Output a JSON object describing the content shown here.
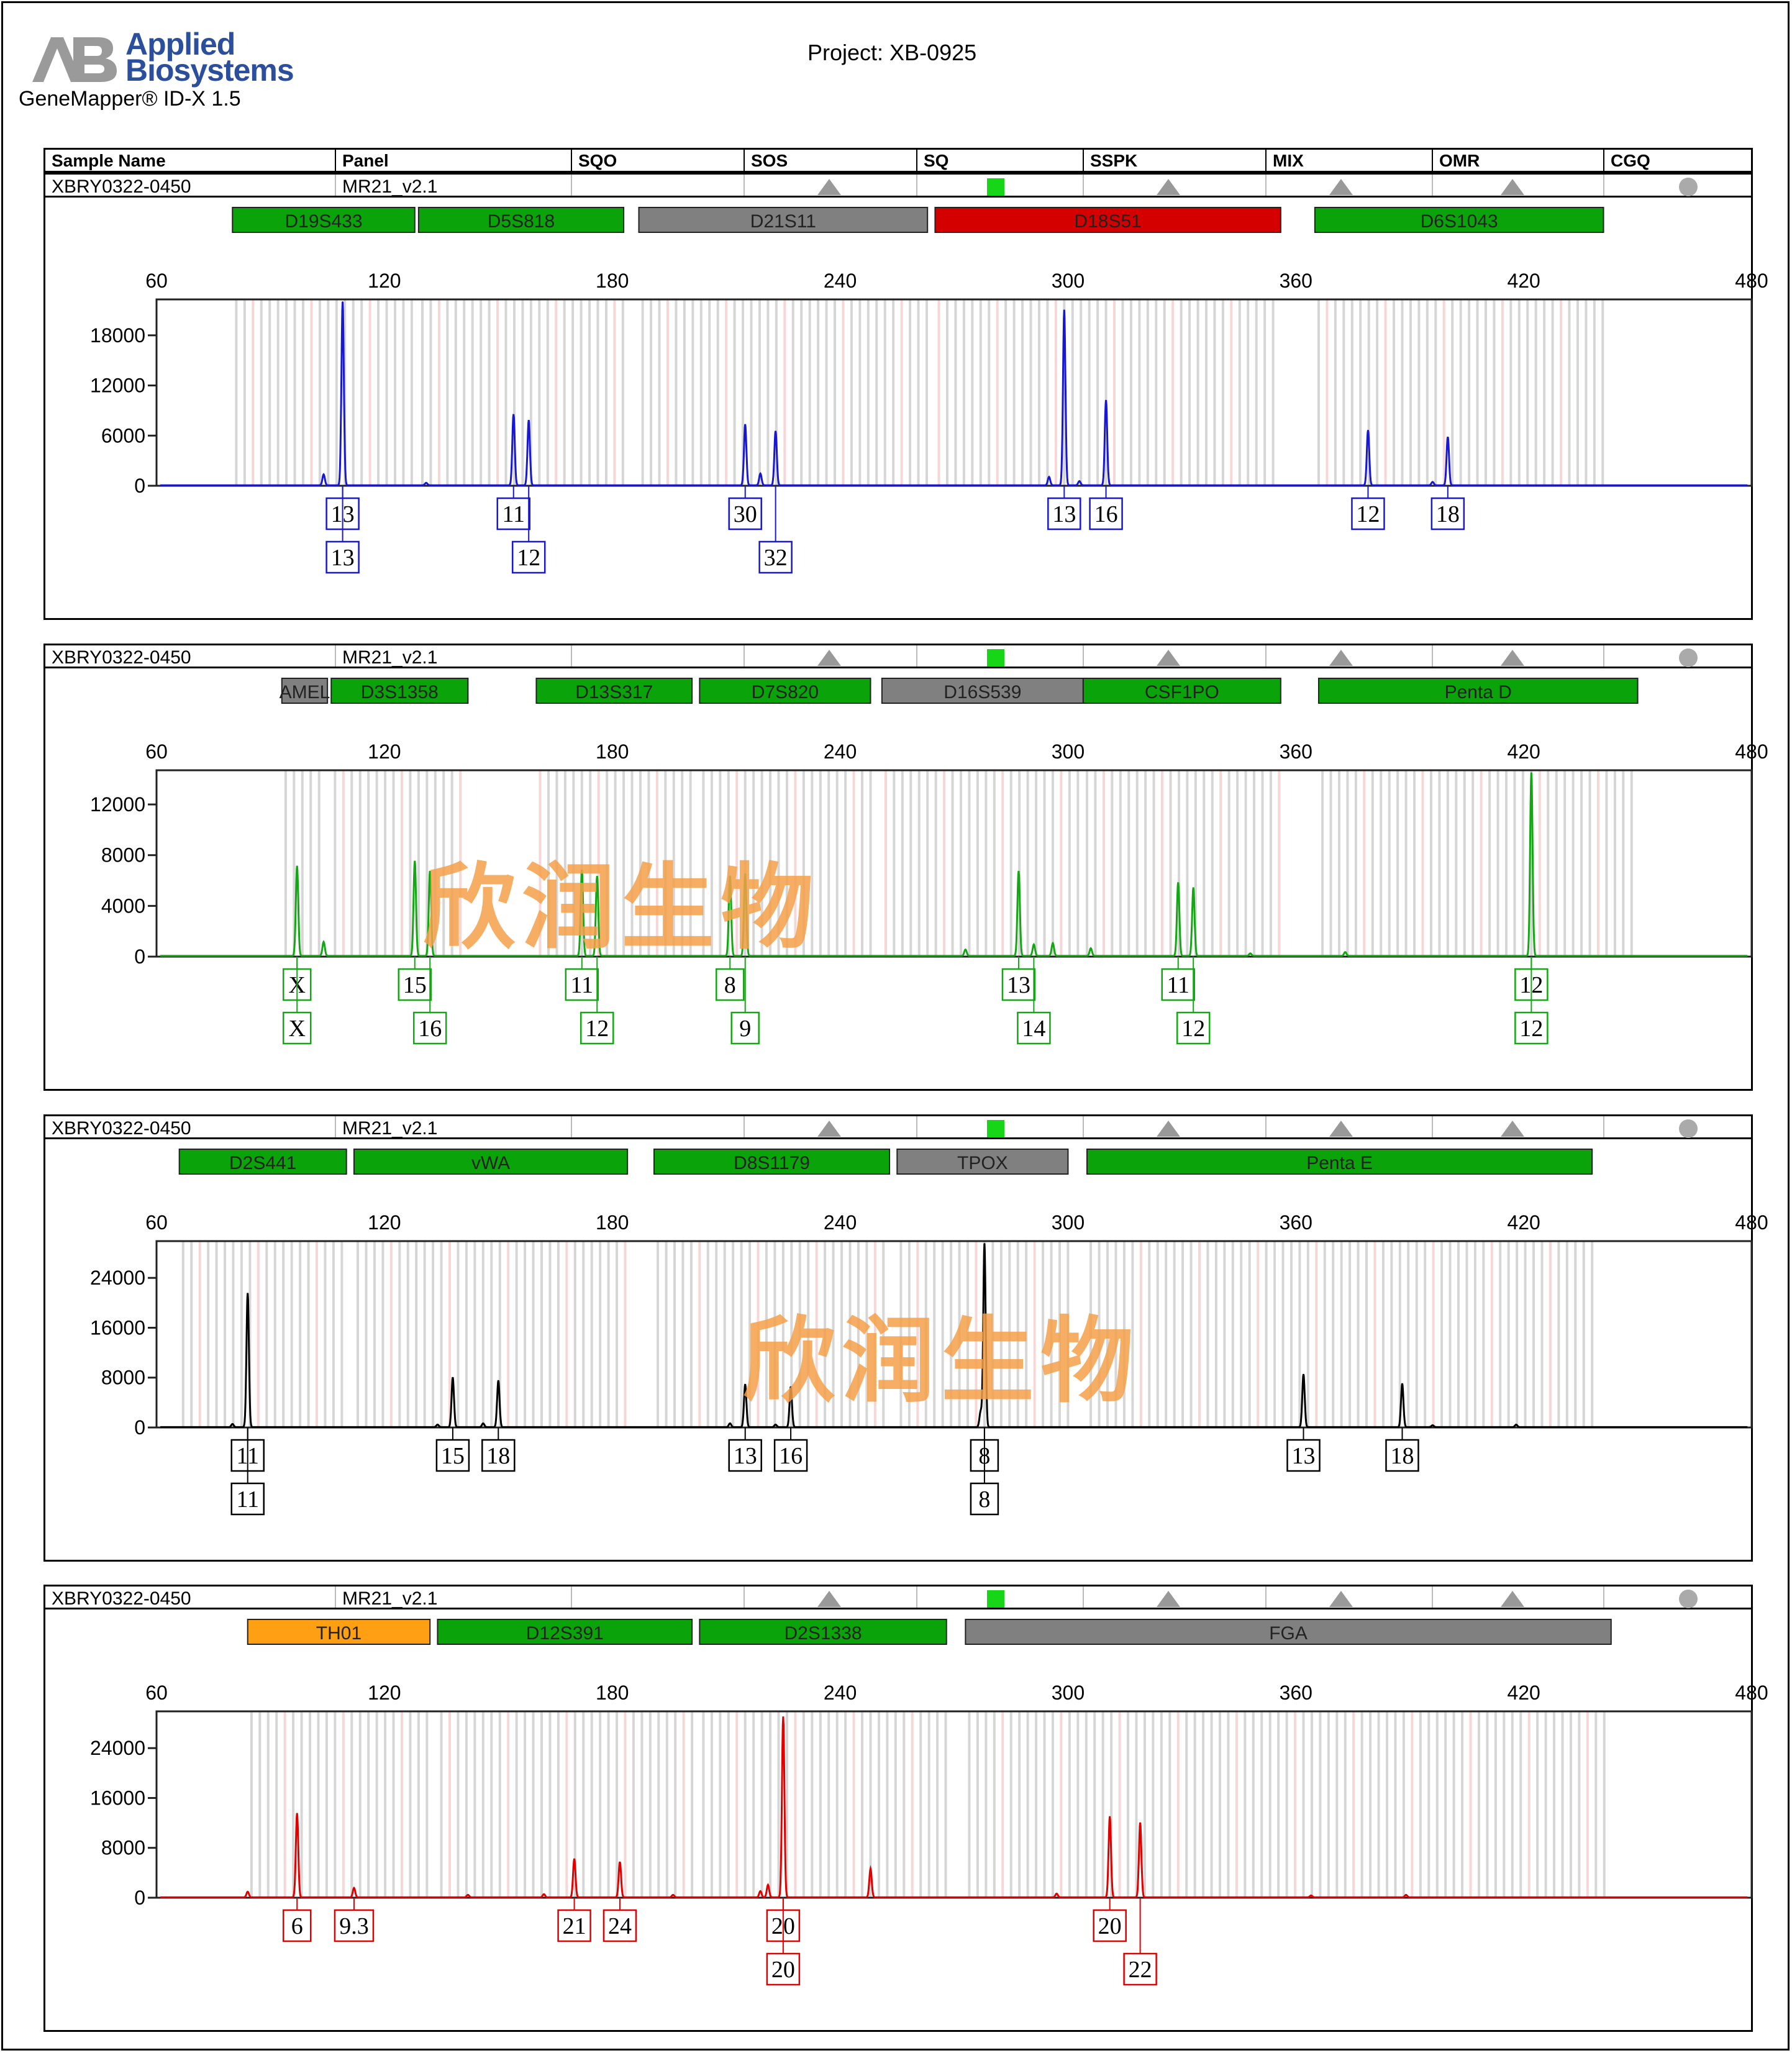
{
  "logo": {
    "line1": "Applied",
    "line2": "Biosystems"
  },
  "app_name": "GeneMapper® ID-X  1.5",
  "project": "Project: XB-0925",
  "watermark": "欣润生物",
  "header": {
    "columns": [
      "Sample Name",
      "Panel",
      "SQO",
      "SOS",
      "SQ",
      "SSPK",
      "MIX",
      "OMR",
      "CGQ"
    ]
  },
  "colors": {
    "green": "#0aa30a",
    "gray": "#808080",
    "red": "#d40000",
    "orange": "#ff9f14",
    "blue": "#1818d0",
    "green_trace": "#13a813",
    "black_trace": "#000000",
    "red_trace": "#e00000"
  },
  "chart_data": [
    {
      "type": "line",
      "sample_name": "XBRY0322-0450",
      "panel": "MR21_v2.1",
      "trace_color": "#1818d0",
      "xlim": [
        60,
        480
      ],
      "x_ticks": [
        60,
        120,
        180,
        240,
        300,
        360,
        420,
        480
      ],
      "ylim": [
        0,
        22000
      ],
      "y_ticks": [
        0,
        6000,
        12000,
        18000
      ],
      "markers": [
        {
          "name": "D19S433",
          "from": 80,
          "to": 128,
          "status": "green"
        },
        {
          "name": "D5S818",
          "from": 129,
          "to": 183,
          "status": "green"
        },
        {
          "name": "D21S11",
          "from": 187,
          "to": 263,
          "status": "gray"
        },
        {
          "name": "D18S51",
          "from": 265,
          "to": 356,
          "status": "red"
        },
        {
          "name": "D6S1043",
          "from": 365,
          "to": 441,
          "status": "green"
        }
      ],
      "peaks": [
        [
          104,
          1300
        ],
        [
          104.5,
          0
        ],
        [
          109,
          22000
        ],
        [
          154,
          8500
        ],
        [
          158,
          7800
        ],
        [
          131,
          300
        ],
        [
          215,
          7300
        ],
        [
          219,
          1400
        ],
        [
          223,
          6500
        ],
        [
          295,
          1000
        ],
        [
          299,
          21000
        ],
        [
          303,
          500
        ],
        [
          310,
          10200
        ],
        [
          379,
          6600
        ],
        [
          400,
          5800
        ],
        [
          396,
          400
        ]
      ],
      "labels": [
        {
          "x": 109,
          "text": "13",
          "row": 1
        },
        {
          "x": 109,
          "text": "13",
          "row": 2
        },
        {
          "x": 154,
          "text": "11",
          "row": 1
        },
        {
          "x": 158,
          "text": "12",
          "row": 2
        },
        {
          "x": 215,
          "text": "30",
          "row": 1
        },
        {
          "x": 223,
          "text": "32",
          "row": 2
        },
        {
          "x": 299,
          "text": "13",
          "row": 1
        },
        {
          "x": 310,
          "text": "16",
          "row": 1
        },
        {
          "x": 379,
          "text": "12",
          "row": 1
        },
        {
          "x": 400,
          "text": "18",
          "row": 1
        }
      ]
    },
    {
      "type": "line",
      "sample_name": "XBRY0322-0450",
      "panel": "MR21_v2.1",
      "trace_color": "#13a813",
      "xlim": [
        60,
        480
      ],
      "x_ticks": [
        60,
        120,
        180,
        240,
        300,
        360,
        420,
        480
      ],
      "ylim": [
        0,
        14500
      ],
      "y_ticks": [
        0,
        4000,
        8000,
        12000
      ],
      "markers": [
        {
          "name": "AMEL",
          "from": 93,
          "to": 105,
          "status": "gray"
        },
        {
          "name": "D3S1358",
          "from": 106,
          "to": 142,
          "status": "green"
        },
        {
          "name": "D13S317",
          "from": 160,
          "to": 201,
          "status": "green"
        },
        {
          "name": "D7S820",
          "from": 203,
          "to": 248,
          "status": "green"
        },
        {
          "name": "D16S539",
          "from": 251,
          "to": 304,
          "status": "gray"
        },
        {
          "name": "CSF1PO",
          "from": 304,
          "to": 356,
          "status": "green"
        },
        {
          "name": "Penta D",
          "from": 366,
          "to": 450,
          "status": "green"
        }
      ],
      "peaks": [
        [
          97,
          7100
        ],
        [
          104,
          1100
        ],
        [
          128,
          7500
        ],
        [
          132,
          6700
        ],
        [
          172,
          6800
        ],
        [
          176,
          6300
        ],
        [
          211,
          6300
        ],
        [
          215,
          6500
        ],
        [
          273,
          500
        ],
        [
          287,
          6700
        ],
        [
          291,
          900
        ],
        [
          296,
          1000
        ],
        [
          306,
          600
        ],
        [
          329,
          5800
        ],
        [
          333,
          5400
        ],
        [
          422,
          14500
        ],
        [
          373,
          300
        ],
        [
          348,
          200
        ]
      ],
      "labels": [
        {
          "x": 97,
          "text": "X",
          "row": 1
        },
        {
          "x": 97,
          "text": "X",
          "row": 2
        },
        {
          "x": 128,
          "text": "15",
          "row": 1
        },
        {
          "x": 132,
          "text": "16",
          "row": 2
        },
        {
          "x": 172,
          "text": "11",
          "row": 1
        },
        {
          "x": 176,
          "text": "12",
          "row": 2
        },
        {
          "x": 211,
          "text": "8",
          "row": 1
        },
        {
          "x": 215,
          "text": "9",
          "row": 2
        },
        {
          "x": 287,
          "text": "13",
          "row": 1
        },
        {
          "x": 291,
          "text": "14",
          "row": 2
        },
        {
          "x": 329,
          "text": "11",
          "row": 1
        },
        {
          "x": 333,
          "text": "12",
          "row": 2
        },
        {
          "x": 422,
          "text": "12",
          "row": 1
        },
        {
          "x": 422,
          "text": "12",
          "row": 2
        }
      ]
    },
    {
      "type": "line",
      "sample_name": "XBRY0322-0450",
      "panel": "MR21_v2.1",
      "trace_color": "#000000",
      "xlim": [
        60,
        480
      ],
      "x_ticks": [
        60,
        120,
        180,
        240,
        300,
        360,
        420,
        480
      ],
      "ylim": [
        0,
        29500
      ],
      "y_ticks": [
        0,
        8000,
        16000,
        24000
      ],
      "markers": [
        {
          "name": "D2S441",
          "from": 66,
          "to": 110,
          "status": "green"
        },
        {
          "name": "vWA",
          "from": 112,
          "to": 184,
          "status": "green"
        },
        {
          "name": "D8S1179",
          "from": 191,
          "to": 253,
          "status": "green"
        },
        {
          "name": "TPOX",
          "from": 255,
          "to": 300,
          "status": "gray"
        },
        {
          "name": "Penta E",
          "from": 305,
          "to": 438,
          "status": "green"
        }
      ],
      "peaks": [
        [
          84,
          21500
        ],
        [
          80,
          500
        ],
        [
          138,
          8000
        ],
        [
          150,
          7500
        ],
        [
          134,
          400
        ],
        [
          146,
          600
        ],
        [
          215,
          6900
        ],
        [
          227,
          6500
        ],
        [
          211,
          600
        ],
        [
          223,
          400
        ],
        [
          278,
          29500
        ],
        [
          277,
          2500
        ],
        [
          362,
          8500
        ],
        [
          388,
          7000
        ],
        [
          396,
          300
        ],
        [
          418,
          400
        ]
      ],
      "labels": [
        {
          "x": 84,
          "text": "11",
          "row": 1
        },
        {
          "x": 84,
          "text": "11",
          "row": 2
        },
        {
          "x": 138,
          "text": "15",
          "row": 1
        },
        {
          "x": 150,
          "text": "18",
          "row": 1
        },
        {
          "x": 215,
          "text": "13",
          "row": 1
        },
        {
          "x": 227,
          "text": "16",
          "row": 1
        },
        {
          "x": 278,
          "text": "8",
          "row": 1
        },
        {
          "x": 278,
          "text": "8",
          "row": 2
        },
        {
          "x": 362,
          "text": "13",
          "row": 1
        },
        {
          "x": 388,
          "text": "18",
          "row": 1
        }
      ]
    },
    {
      "type": "line",
      "sample_name": "XBRY0322-0450",
      "panel": "MR21_v2.1",
      "trace_color": "#e00000",
      "xlim": [
        60,
        480
      ],
      "x_ticks": [
        60,
        120,
        180,
        240,
        300,
        360,
        420,
        480
      ],
      "ylim": [
        0,
        29500
      ],
      "y_ticks": [
        0,
        8000,
        16000,
        24000
      ],
      "markers": [
        {
          "name": "TH01",
          "from": 84,
          "to": 132,
          "status": "orange"
        },
        {
          "name": "D12S391",
          "from": 134,
          "to": 201,
          "status": "green"
        },
        {
          "name": "D2S1338",
          "from": 203,
          "to": 268,
          "status": "green"
        },
        {
          "name": "FGA",
          "from": 273,
          "to": 443,
          "status": "gray"
        }
      ],
      "peaks": [
        [
          97,
          13500
        ],
        [
          84,
          900
        ],
        [
          112,
          1500
        ],
        [
          170,
          6200
        ],
        [
          182,
          5700
        ],
        [
          162,
          500
        ],
        [
          196,
          400
        ],
        [
          225,
          29000
        ],
        [
          221,
          2000
        ],
        [
          219,
          1000
        ],
        [
          248,
          4600
        ],
        [
          142,
          400
        ],
        [
          297,
          600
        ],
        [
          311,
          13000
        ],
        [
          319,
          12000
        ],
        [
          364,
          300
        ],
        [
          389,
          400
        ]
      ],
      "labels": [
        {
          "x": 97,
          "text": "6",
          "row": 1
        },
        {
          "x": 112,
          "text": "9.3",
          "row": 1
        },
        {
          "x": 170,
          "text": "21",
          "row": 1
        },
        {
          "x": 182,
          "text": "24",
          "row": 1
        },
        {
          "x": 225,
          "text": "20",
          "row": 1
        },
        {
          "x": 225,
          "text": "20",
          "row": 2
        },
        {
          "x": 311,
          "text": "20",
          "row": 1
        },
        {
          "x": 319,
          "text": "22",
          "row": 2
        }
      ]
    }
  ]
}
